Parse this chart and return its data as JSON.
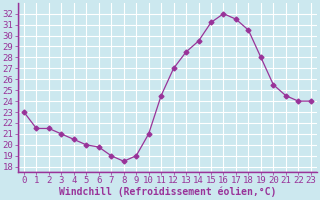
{
  "x": [
    0,
    1,
    2,
    3,
    4,
    5,
    6,
    7,
    8,
    9,
    10,
    11,
    12,
    13,
    14,
    15,
    16,
    17,
    18,
    19,
    20,
    21,
    22,
    23
  ],
  "y": [
    23.0,
    21.5,
    21.5,
    21.0,
    20.5,
    20.0,
    19.8,
    19.0,
    18.5,
    19.0,
    21.0,
    24.5,
    27.0,
    28.5,
    29.5,
    31.2,
    32.0,
    31.5,
    30.5,
    28.0,
    25.5,
    24.5,
    24.0,
    24.0
  ],
  "line_color": "#993399",
  "marker": "D",
  "markersize": 2.5,
  "bg_color": "#cce8ef",
  "grid_color": "#ffffff",
  "text_color": "#993399",
  "xlabel": "Windchill (Refroidissement éolien,°C)",
  "xlabel_fontsize": 7,
  "tick_fontsize": 6.5,
  "xlim": [
    -0.5,
    23.5
  ],
  "ylim": [
    17.5,
    33.0
  ],
  "yticks": [
    18,
    19,
    20,
    21,
    22,
    23,
    24,
    25,
    26,
    27,
    28,
    29,
    30,
    31,
    32
  ],
  "xticks": [
    0,
    1,
    2,
    3,
    4,
    5,
    6,
    7,
    8,
    9,
    10,
    11,
    12,
    13,
    14,
    15,
    16,
    17,
    18,
    19,
    20,
    21,
    22,
    23
  ]
}
